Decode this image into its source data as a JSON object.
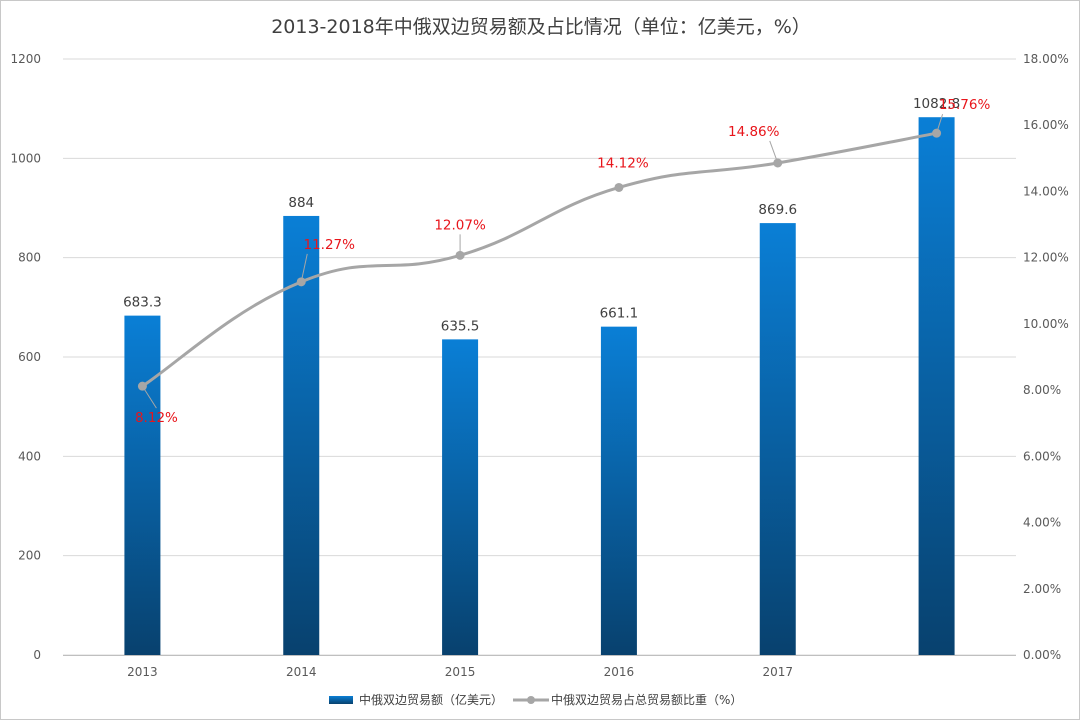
{
  "chart_data": {
    "type": "bar",
    "title": "2013-2018年中俄双边贸易额及占比情况（单位：亿美元，%）",
    "categories": [
      "2013",
      "2014",
      "2015",
      "2016",
      "2017",
      ""
    ],
    "series": [
      {
        "name": "中俄双边贸易额（亿美元）",
        "type": "bar",
        "axis": "left",
        "values": [
          683.3,
          884,
          635.5,
          661.1,
          869.6,
          1082.8
        ],
        "labels": [
          "683.3",
          "884",
          "635.5",
          "661.1",
          "869.6",
          "1082.8"
        ],
        "color_top": "#0a7fd6",
        "color_bottom": "#08416e"
      },
      {
        "name": "中俄双边贸易占总贸易额比重（%）",
        "type": "line",
        "axis": "right",
        "values": [
          8.12,
          11.27,
          12.07,
          14.12,
          14.86,
          15.76
        ],
        "labels": [
          "8.12%",
          "11.27%",
          "12.07%",
          "14.12%",
          "14.86%",
          "15.76%"
        ],
        "color": "#a6a6a6",
        "label_color": "#e8151b"
      }
    ],
    "y_left": {
      "min": 0,
      "max": 1200,
      "ticks": [
        "0",
        "200",
        "400",
        "600",
        "800",
        "1000",
        "1200"
      ]
    },
    "y_right": {
      "min": 0,
      "max": 18,
      "ticks": [
        "0.00%",
        "2.00%",
        "4.00%",
        "6.00%",
        "8.00%",
        "10.00%",
        "12.00%",
        "14.00%",
        "16.00%",
        "18.00%"
      ]
    },
    "grid": true,
    "legend": "bottom"
  }
}
